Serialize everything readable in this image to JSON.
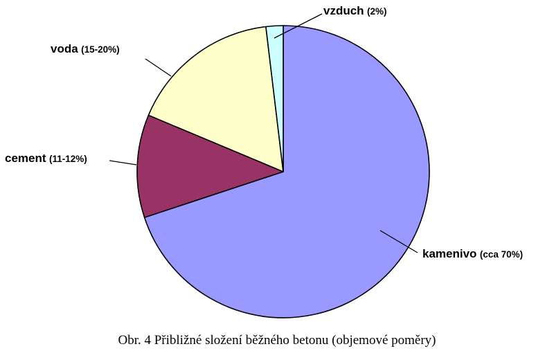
{
  "chart_data": {
    "type": "pie",
    "title": "",
    "caption": "Obr. 4 Přibližné složení běžného betonu (objemové poměry)",
    "start": "12 o'clock",
    "direction": "clockwise",
    "slices": [
      {
        "name": "kamenivo",
        "share_label": "(cca 70%)",
        "value": 70,
        "color": "#9999FF"
      },
      {
        "name": "cement",
        "share_label": "(11-12%)",
        "value": 11.4,
        "color": "#993366"
      },
      {
        "name": "voda",
        "share_label": "(15-20%)",
        "value": 16.8,
        "color": "#FFFFCC"
      },
      {
        "name": "vzduch",
        "share_label": "(2%)",
        "value": 1.9,
        "color": "#CCFFFF"
      }
    ]
  }
}
